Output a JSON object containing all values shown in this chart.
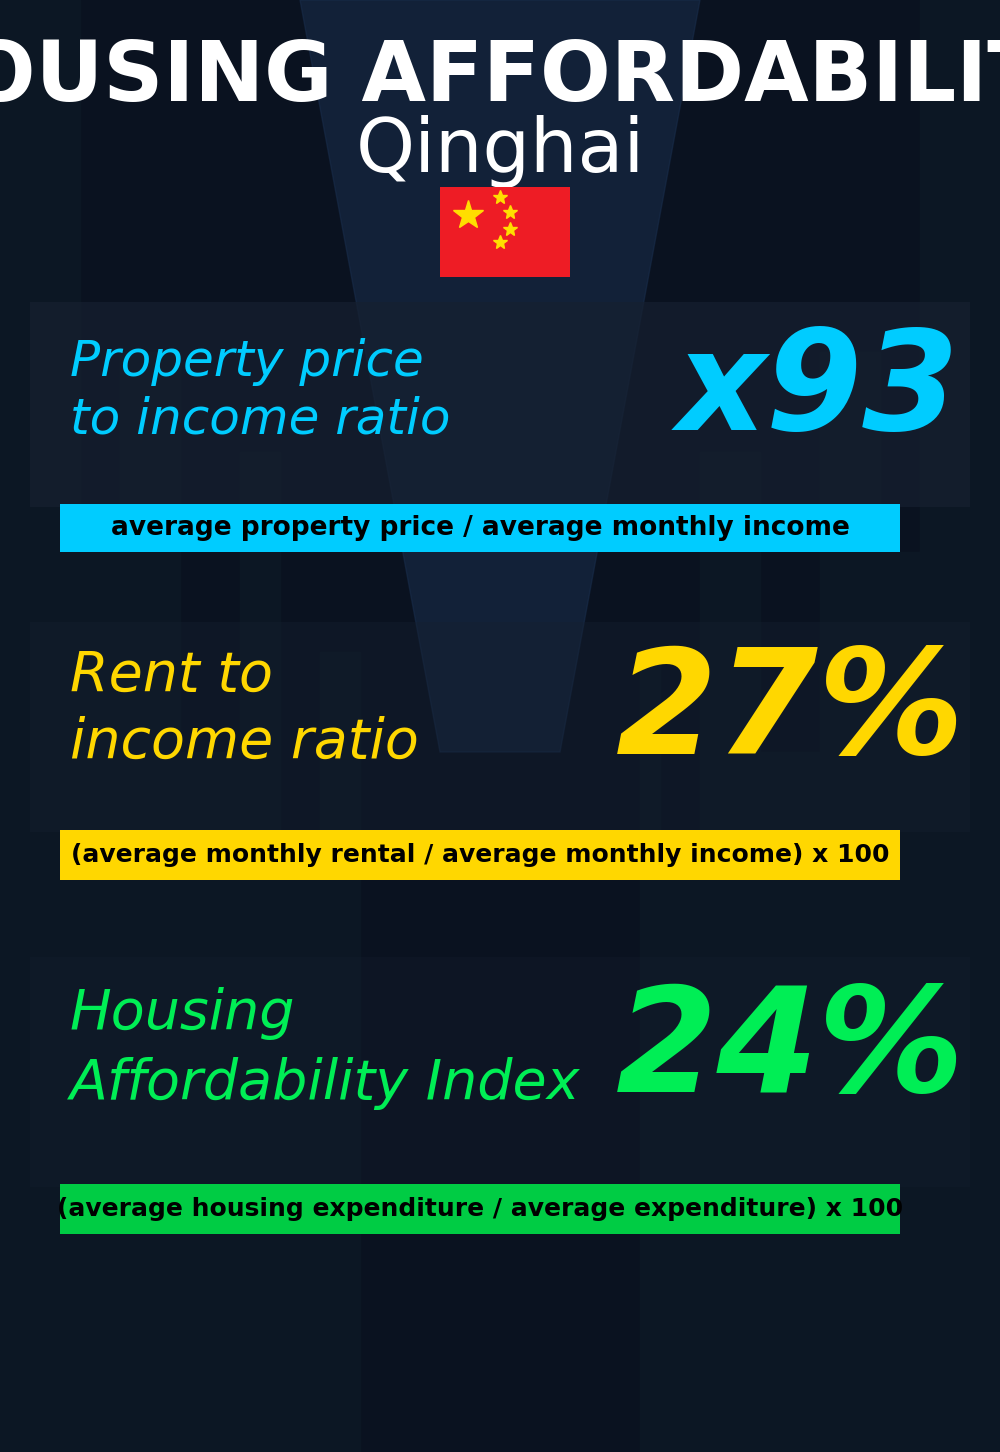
{
  "title_line1": "HOUSING AFFORDABILITY",
  "title_line2": "Qinghai",
  "flag_emoji": "🇨🇳",
  "section1_label_line1": "Property price",
  "section1_label_line2": "to income ratio",
  "section1_value": "x93",
  "section1_sublabel": "average property price / average monthly income",
  "section1_label_color": "#00CCFF",
  "section1_value_color": "#00CCFF",
  "section1_banner_bg": "#00CCFF",
  "section1_banner_text_color": "#000000",
  "section2_label_line1": "Rent to",
  "section2_label_line2": "income ratio",
  "section2_value": "27%",
  "section2_sublabel": "(average monthly rental / average monthly income) x 100",
  "section2_label_color": "#FFD700",
  "section2_value_color": "#FFD700",
  "section2_banner_bg": "#FFD700",
  "section2_banner_text_color": "#000000",
  "section3_label_line1": "Housing",
  "section3_label_line2": "Affordability Index",
  "section3_value": "24%",
  "section3_sublabel": "(average housing expenditure / average expenditure) x 100",
  "section3_label_color": "#00EE55",
  "section3_value_color": "#00EE55",
  "section3_banner_bg": "#00CC44",
  "section3_banner_text_color": "#000000",
  "bg_color": "#0a1220",
  "title_color": "#FFFFFF",
  "subtitle_color": "#FFFFFF",
  "panel_color": "#162030",
  "panel_alpha": 0.7
}
